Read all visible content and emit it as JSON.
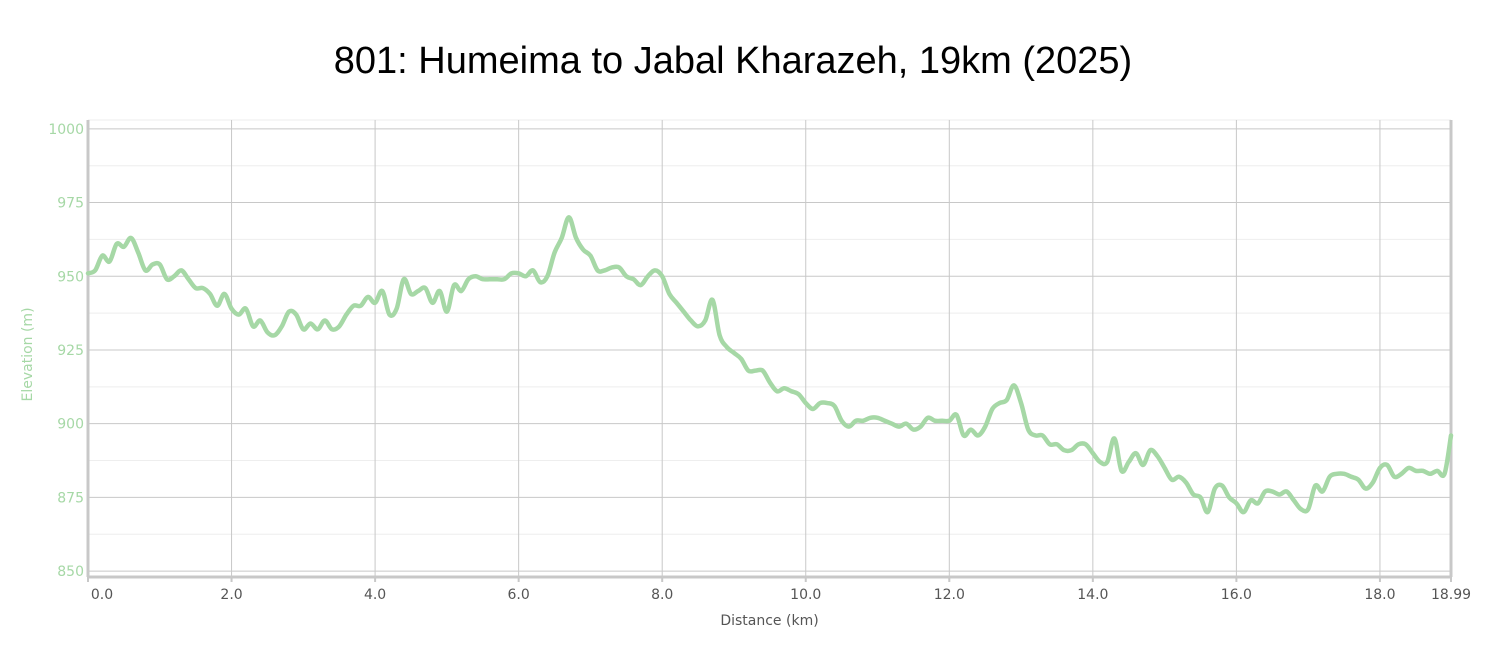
{
  "chart_data": {
    "type": "line",
    "title": "801: Humeima to Jabal Kharazeh, 19km (2025)",
    "xlabel": "Distance (km)",
    "ylabel": "Elevation (m)",
    "xlim": [
      0,
      18.99
    ],
    "ylim": [
      848,
      1003
    ],
    "x_ticks": [
      0.0,
      2.0,
      4.0,
      6.0,
      8.0,
      10.0,
      12.0,
      14.0,
      16.0,
      18.0,
      18.99
    ],
    "x_tick_labels": [
      "0.0",
      "2.0",
      "4.0",
      "6.0",
      "8.0",
      "10.0",
      "12.0",
      "14.0",
      "16.0",
      "18.0",
      "18.99"
    ],
    "y_ticks": [
      850,
      875,
      900,
      925,
      950,
      975,
      1000
    ],
    "y_tick_labels": [
      "850",
      "875",
      "900",
      "925",
      "950",
      "975",
      "1000"
    ],
    "grid": true,
    "colors": {
      "line": "#a6d8a6",
      "grid_major": "#c8c8c8",
      "grid_minor": "#eeeeee",
      "axis": "#c8c8c8"
    },
    "series": [
      {
        "x": [
          0.0,
          0.1,
          0.2,
          0.3,
          0.4,
          0.5,
          0.6,
          0.7,
          0.8,
          0.9,
          1.0,
          1.1,
          1.2,
          1.3,
          1.4,
          1.5,
          1.6,
          1.7,
          1.8,
          1.9,
          2.0,
          2.1,
          2.2,
          2.3,
          2.4,
          2.5,
          2.6,
          2.7,
          2.8,
          2.9,
          3.0,
          3.1,
          3.2,
          3.3,
          3.4,
          3.5,
          3.6,
          3.7,
          3.8,
          3.9,
          4.0,
          4.1,
          4.2,
          4.3,
          4.4,
          4.5,
          4.6,
          4.7,
          4.8,
          4.9,
          5.0,
          5.1,
          5.2,
          5.3,
          5.4,
          5.5,
          5.6,
          5.7,
          5.8,
          5.9,
          6.0,
          6.1,
          6.2,
          6.3,
          6.4,
          6.5,
          6.6,
          6.7,
          6.8,
          6.9,
          7.0,
          7.1,
          7.2,
          7.3,
          7.4,
          7.5,
          7.6,
          7.7,
          7.8,
          7.9,
          8.0,
          8.1,
          8.2,
          8.3,
          8.4,
          8.5,
          8.6,
          8.7,
          8.8,
          8.9,
          9.0,
          9.1,
          9.2,
          9.3,
          9.4,
          9.5,
          9.6,
          9.7,
          9.8,
          9.9,
          10.0,
          10.1,
          10.2,
          10.3,
          10.4,
          10.5,
          10.6,
          10.7,
          10.8,
          10.9,
          11.0,
          11.1,
          11.2,
          11.3,
          11.4,
          11.5,
          11.6,
          11.7,
          11.8,
          11.9,
          12.0,
          12.1,
          12.2,
          12.3,
          12.4,
          12.5,
          12.6,
          12.7,
          12.8,
          12.9,
          13.0,
          13.1,
          13.2,
          13.3,
          13.4,
          13.5,
          13.6,
          13.7,
          13.8,
          13.9,
          14.0,
          14.1,
          14.2,
          14.3,
          14.4,
          14.5,
          14.6,
          14.7,
          14.8,
          14.9,
          15.0,
          15.1,
          15.2,
          15.3,
          15.4,
          15.5,
          15.6,
          15.7,
          15.8,
          15.9,
          16.0,
          16.1,
          16.2,
          16.3,
          16.4,
          16.5,
          16.6,
          16.7,
          16.8,
          16.9,
          17.0,
          17.1,
          17.2,
          17.3,
          17.4,
          17.5,
          17.6,
          17.7,
          17.8,
          17.9,
          18.0,
          18.1,
          18.2,
          18.3,
          18.4,
          18.5,
          18.6,
          18.7,
          18.8,
          18.9,
          18.99
        ],
        "y": [
          951,
          952,
          957,
          955,
          961,
          960,
          963,
          958,
          952,
          954,
          954,
          949,
          950,
          952,
          949,
          946,
          946,
          944,
          940,
          944,
          939,
          937,
          939,
          933,
          935,
          931,
          930,
          933,
          938,
          937,
          932,
          934,
          932,
          935,
          932,
          933,
          937,
          940,
          940,
          943,
          941,
          945,
          937,
          939,
          949,
          944,
          945,
          946,
          941,
          945,
          938,
          947,
          945,
          949,
          950,
          949,
          949,
          949,
          949,
          951,
          951,
          950,
          952,
          948,
          950,
          958,
          963,
          970,
          963,
          959,
          957,
          952,
          952,
          953,
          953,
          950,
          949,
          947,
          950,
          952,
          950,
          944,
          941,
          938,
          935,
          933,
          935,
          942,
          930,
          926,
          924,
          922,
          918,
          918,
          918,
          914,
          911,
          912,
          911,
          910,
          907,
          905,
          907,
          907,
          906,
          901,
          899,
          901,
          901,
          902,
          902,
          901,
          900,
          899,
          900,
          898,
          899,
          902,
          901,
          901,
          901,
          903,
          896,
          898,
          896,
          899,
          905,
          907,
          908,
          913,
          907,
          898,
          896,
          896,
          893,
          893,
          891,
          891,
          893,
          893,
          890,
          887,
          887,
          895,
          884,
          887,
          890,
          886,
          891,
          889,
          885,
          881,
          882,
          880,
          876,
          875,
          870,
          878,
          879,
          875,
          873,
          870,
          874,
          873,
          877,
          877,
          876,
          877,
          874,
          871,
          871,
          879,
          877,
          882,
          883,
          883,
          882,
          881,
          878,
          880,
          885,
          886,
          882,
          883,
          885,
          884,
          884,
          883,
          884,
          883,
          896
        ]
      }
    ]
  }
}
